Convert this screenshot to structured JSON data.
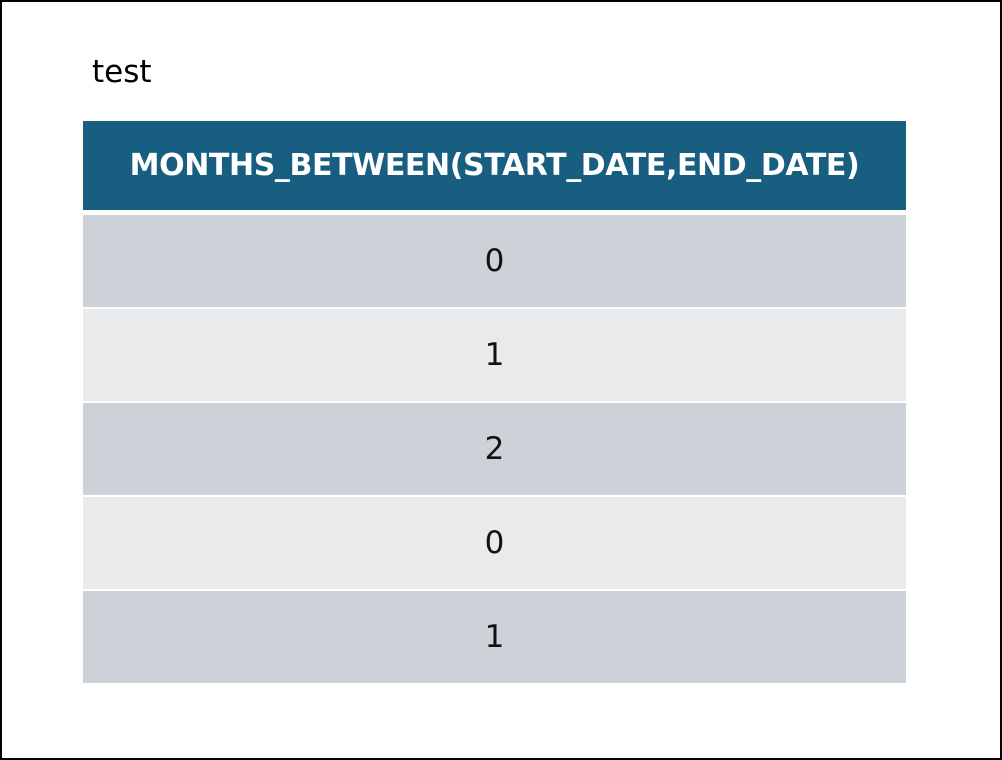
{
  "caption": "test",
  "table": {
    "header": "MONTHS_BETWEEN(START_DATE,END_DATE)",
    "rows": [
      "0",
      "1",
      "2",
      "0",
      "1"
    ]
  },
  "colors": {
    "header_background": "#175e80",
    "row_dark": "#cdd2d8",
    "row_light": "#e8eaec"
  }
}
